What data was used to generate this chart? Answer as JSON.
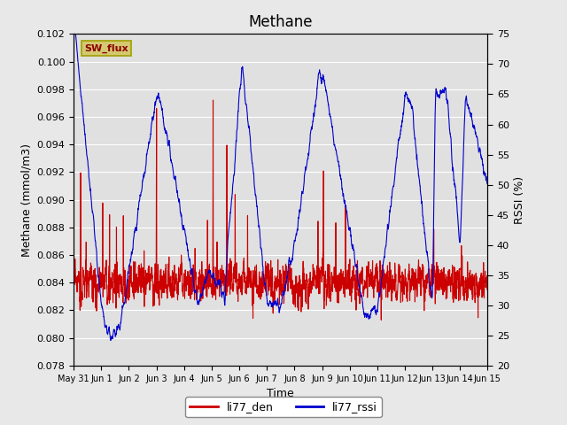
{
  "title": "Methane",
  "ylabel_left": "Methane (mmol/m3)",
  "ylabel_right": "RSSI (%)",
  "xlabel": "Time",
  "ylim_left": [
    0.078,
    0.102
  ],
  "ylim_right": [
    20,
    75
  ],
  "yticks_left": [
    0.078,
    0.08,
    0.082,
    0.084,
    0.086,
    0.088,
    0.09,
    0.092,
    0.094,
    0.096,
    0.098,
    0.1,
    0.102
  ],
  "yticks_right": [
    20,
    25,
    30,
    35,
    40,
    45,
    50,
    55,
    60,
    65,
    70,
    75
  ],
  "xtick_labels": [
    "May 31",
    "Jun 1",
    "Jun 2",
    "Jun 3",
    "Jun 4",
    "Jun 5",
    "Jun 6",
    "Jun 7",
    "Jun 8",
    "Jun 9",
    "Jun 10",
    "Jun 11",
    "Jun 12",
    "Jun 13",
    "Jun 14",
    "Jun 15"
  ],
  "color_red": "#cc0000",
  "color_blue": "#0000cc",
  "plot_bg_color": "#e0e0e0",
  "fig_bg": "#e8e8e8",
  "legend_labels": [
    "li77_den",
    "li77_rssi"
  ],
  "sw_flux_label": "SW_flux",
  "sw_flux_fg": "#8b0000",
  "sw_flux_bg": "#d4c870",
  "sw_flux_border": "#a0a000",
  "title_fontsize": 12,
  "label_fontsize": 9,
  "tick_fontsize": 8,
  "legend_fontsize": 9
}
